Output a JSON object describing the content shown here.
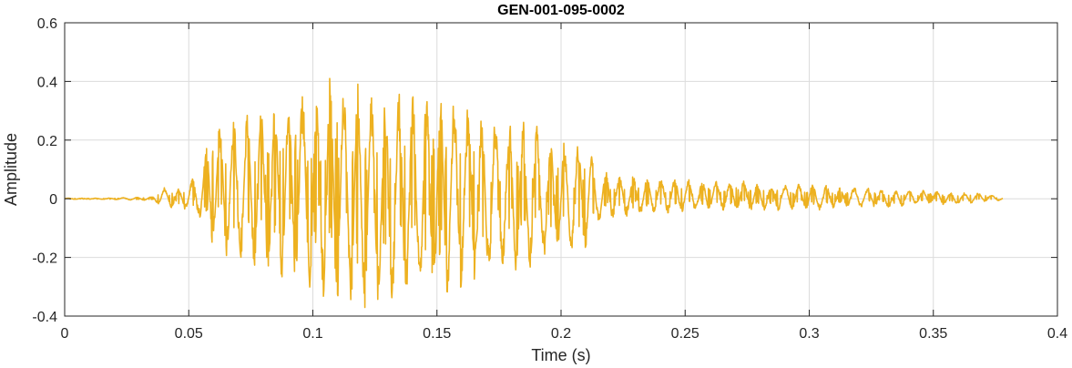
{
  "chart_data": {
    "type": "line",
    "title": "GEN-001-095-0002",
    "xlabel": "Time (s)",
    "ylabel": "Amplitude",
    "xlim": [
      0,
      0.4
    ],
    "ylim": [
      -0.4,
      0.6
    ],
    "xticks": [
      0,
      0.05,
      0.1,
      0.15,
      0.2,
      0.25,
      0.3,
      0.35,
      0.4
    ],
    "xtick_labels": [
      "0",
      "0.05",
      "0.1",
      "0.15",
      "0.2",
      "0.25",
      "0.3",
      "0.35",
      "0.4"
    ],
    "yticks": [
      -0.4,
      -0.2,
      0,
      0.2,
      0.4,
      0.6
    ],
    "ytick_labels": [
      "-0.4",
      "-0.2",
      "0",
      "0.2",
      "0.4",
      "0.6"
    ],
    "grid": true,
    "line_color": "#EDB120",
    "series": [
      {
        "x": [
          0,
          0.005,
          0.01,
          0.015,
          0.02,
          0.025,
          0.03,
          0.035,
          0.04,
          0.045,
          0.05,
          0.055,
          0.06,
          0.065,
          0.07,
          0.075,
          0.08,
          0.085,
          0.09,
          0.095,
          0.1,
          0.105,
          0.11,
          0.115,
          0.12,
          0.125,
          0.13,
          0.135,
          0.14,
          0.145,
          0.15,
          0.155,
          0.16,
          0.165,
          0.17,
          0.175,
          0.18,
          0.185,
          0.19,
          0.195,
          0.2,
          0.205,
          0.21,
          0.215,
          0.22,
          0.225,
          0.23,
          0.235,
          0.24,
          0.245,
          0.25,
          0.255,
          0.26,
          0.265,
          0.27,
          0.275,
          0.28,
          0.285,
          0.29,
          0.295,
          0.3,
          0.305,
          0.31,
          0.315,
          0.32,
          0.325,
          0.33,
          0.335,
          0.34,
          0.345,
          0.35,
          0.355,
          0.36,
          0.365,
          0.37,
          0.375,
          0.378
        ],
        "env_upper": [
          0.002,
          0.002,
          0.002,
          0.002,
          0.003,
          0.004,
          0.005,
          0.006,
          0.04,
          0.03,
          0.05,
          0.13,
          0.26,
          0.28,
          0.29,
          0.3,
          0.31,
          0.34,
          0.35,
          0.37,
          0.39,
          0.42,
          0.42,
          0.42,
          0.38,
          0.37,
          0.36,
          0.36,
          0.37,
          0.38,
          0.39,
          0.36,
          0.33,
          0.31,
          0.3,
          0.29,
          0.28,
          0.27,
          0.25,
          0.2,
          0.2,
          0.19,
          0.19,
          0.1,
          0.09,
          0.08,
          0.08,
          0.07,
          0.07,
          0.07,
          0.07,
          0.06,
          0.06,
          0.06,
          0.06,
          0.06,
          0.05,
          0.05,
          0.05,
          0.05,
          0.05,
          0.05,
          0.04,
          0.04,
          0.04,
          0.04,
          0.03,
          0.03,
          0.03,
          0.03,
          0.03,
          0.02,
          0.02,
          0.02,
          0.02,
          0.01,
          0.005
        ],
        "env_lower": [
          -0.002,
          -0.002,
          -0.002,
          -0.002,
          -0.003,
          -0.004,
          -0.005,
          -0.006,
          -0.03,
          -0.03,
          -0.04,
          -0.08,
          -0.18,
          -0.2,
          -0.22,
          -0.23,
          -0.25,
          -0.26,
          -0.28,
          -0.3,
          -0.33,
          -0.35,
          -0.37,
          -0.38,
          -0.38,
          -0.37,
          -0.36,
          -0.35,
          -0.34,
          -0.35,
          -0.37,
          -0.33,
          -0.31,
          -0.29,
          -0.28,
          -0.27,
          -0.26,
          -0.25,
          -0.22,
          -0.2,
          -0.2,
          -0.19,
          -0.18,
          -0.08,
          -0.07,
          -0.06,
          -0.06,
          -0.05,
          -0.05,
          -0.05,
          -0.05,
          -0.04,
          -0.04,
          -0.04,
          -0.04,
          -0.04,
          -0.04,
          -0.04,
          -0.04,
          -0.04,
          -0.04,
          -0.04,
          -0.03,
          -0.03,
          -0.03,
          -0.03,
          -0.03,
          -0.03,
          -0.02,
          -0.02,
          -0.02,
          -0.02,
          -0.02,
          -0.015,
          -0.01,
          -0.008,
          -0.004
        ]
      }
    ]
  }
}
